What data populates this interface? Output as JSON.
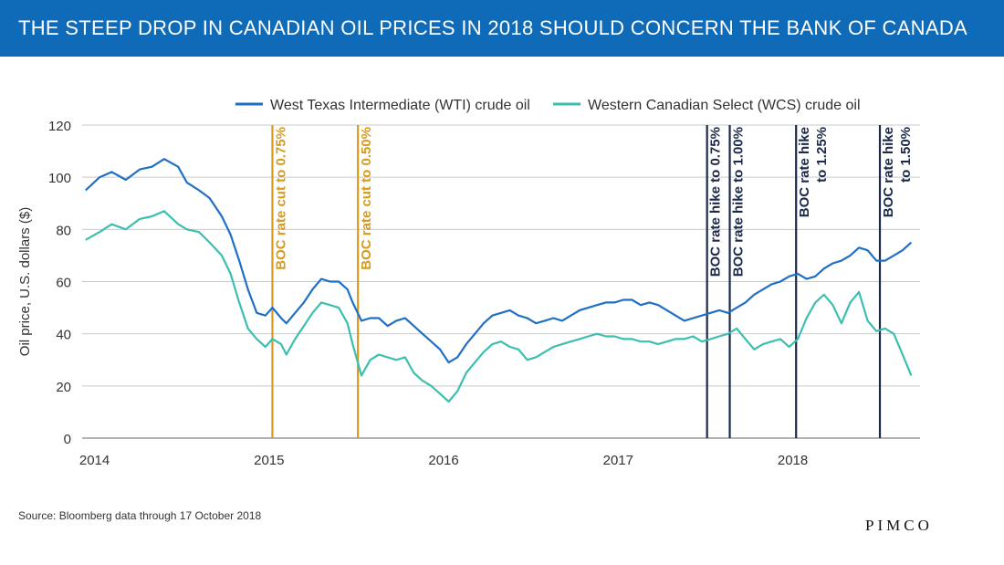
{
  "header": {
    "title": "THE STEEP DROP IN CANADIAN OIL PRICES IN 2018 SHOULD CONCERN THE BANK OF CANADA"
  },
  "footer": {
    "source": "Source: Bloomberg data through 17 October 2018",
    "brand": "PIMCO"
  },
  "colors": {
    "header_bg": "#0f6bb7",
    "wti": "#1f6fc5",
    "wcs": "#3cbfae",
    "rate_cut": "#d89a1a",
    "rate_hike": "#1b2a4a"
  },
  "chart_data": {
    "type": "line",
    "title": "",
    "xlabel": "",
    "ylabel": "Oil price, U.S. dollars ($)",
    "ylim": [
      0,
      120
    ],
    "yticks": [
      0,
      20,
      40,
      60,
      80,
      100,
      120
    ],
    "xticks": [
      {
        "label": "2014",
        "x": 2014.0
      },
      {
        "label": "2015",
        "x": 2015.0
      },
      {
        "label": "2016",
        "x": 2016.0
      },
      {
        "label": "2017",
        "x": 2017.0
      },
      {
        "label": "2018",
        "x": 2018.0
      }
    ],
    "xlim": [
      2013.95,
      2018.75
    ],
    "grid": "horizontal",
    "legend": "top-right",
    "series": [
      {
        "name": "West Texas Intermediate (WTI) crude oil",
        "x": [
          2013.97,
          2014.05,
          2014.12,
          2014.2,
          2014.28,
          2014.35,
          2014.42,
          2014.5,
          2014.55,
          2014.62,
          2014.68,
          2014.75,
          2014.8,
          2014.85,
          2014.9,
          2014.95,
          2015.0,
          2015.04,
          2015.09,
          2015.12,
          2015.17,
          2015.22,
          2015.27,
          2015.32,
          2015.37,
          2015.42,
          2015.47,
          2015.5,
          2015.55,
          2015.6,
          2015.65,
          2015.7,
          2015.75,
          2015.8,
          2015.85,
          2015.9,
          2015.95,
          2016.0,
          2016.05,
          2016.1,
          2016.15,
          2016.2,
          2016.25,
          2016.3,
          2016.35,
          2016.4,
          2016.45,
          2016.5,
          2016.55,
          2016.6,
          2016.65,
          2016.7,
          2016.75,
          2016.8,
          2016.85,
          2016.9,
          2016.95,
          2017.0,
          2017.05,
          2017.1,
          2017.15,
          2017.2,
          2017.25,
          2017.3,
          2017.35,
          2017.4,
          2017.45,
          2017.5,
          2017.55,
          2017.6,
          2017.65,
          2017.7,
          2017.75,
          2017.8,
          2017.85,
          2017.9,
          2017.95,
          2018.0,
          2018.05,
          2018.1,
          2018.15,
          2018.2,
          2018.25,
          2018.3,
          2018.35,
          2018.4,
          2018.45,
          2018.5,
          2018.55,
          2018.6,
          2018.65,
          2018.7
        ],
        "y": [
          95,
          100,
          102,
          99,
          103,
          104,
          107,
          104,
          98,
          95,
          92,
          85,
          78,
          68,
          57,
          48,
          47,
          50,
          46,
          44,
          48,
          52,
          57,
          61,
          60,
          60,
          57,
          52,
          45,
          46,
          46,
          43,
          45,
          46,
          43,
          40,
          37,
          34,
          29,
          31,
          36,
          40,
          44,
          47,
          48,
          49,
          47,
          46,
          44,
          45,
          46,
          45,
          47,
          49,
          50,
          51,
          52,
          52,
          53,
          53,
          51,
          52,
          51,
          49,
          47,
          45,
          46,
          47,
          48,
          49,
          48,
          50,
          52,
          55,
          57,
          59,
          60,
          62,
          63,
          61,
          62,
          65,
          67,
          68,
          70,
          73,
          72,
          68,
          68,
          70,
          72,
          75
        ],
        "color": "#1f6fc5"
      },
      {
        "name": "Western Canadian Select (WCS) crude oil",
        "x": [
          2013.97,
          2014.05,
          2014.12,
          2014.2,
          2014.28,
          2014.35,
          2014.42,
          2014.5,
          2014.55,
          2014.62,
          2014.68,
          2014.75,
          2014.8,
          2014.85,
          2014.9,
          2014.95,
          2015.0,
          2015.04,
          2015.09,
          2015.12,
          2015.17,
          2015.22,
          2015.27,
          2015.32,
          2015.37,
          2015.42,
          2015.47,
          2015.5,
          2015.55,
          2015.6,
          2015.65,
          2015.7,
          2015.75,
          2015.8,
          2015.85,
          2015.9,
          2015.95,
          2016.0,
          2016.05,
          2016.1,
          2016.15,
          2016.2,
          2016.25,
          2016.3,
          2016.35,
          2016.4,
          2016.45,
          2016.5,
          2016.55,
          2016.6,
          2016.65,
          2016.7,
          2016.75,
          2016.8,
          2016.85,
          2016.9,
          2016.95,
          2017.0,
          2017.05,
          2017.1,
          2017.15,
          2017.2,
          2017.25,
          2017.3,
          2017.35,
          2017.4,
          2017.45,
          2017.5,
          2017.55,
          2017.6,
          2017.65,
          2017.7,
          2017.75,
          2017.8,
          2017.85,
          2017.9,
          2017.95,
          2018.0,
          2018.05,
          2018.1,
          2018.15,
          2018.2,
          2018.25,
          2018.3,
          2018.35,
          2018.4,
          2018.45,
          2018.5,
          2018.55,
          2018.6,
          2018.65,
          2018.7
        ],
        "y": [
          76,
          79,
          82,
          80,
          84,
          85,
          87,
          82,
          80,
          79,
          75,
          70,
          63,
          52,
          42,
          38,
          35,
          38,
          36,
          32,
          38,
          43,
          48,
          52,
          51,
          50,
          44,
          36,
          24,
          30,
          32,
          31,
          30,
          31,
          25,
          22,
          20,
          17,
          14,
          18,
          25,
          29,
          33,
          36,
          37,
          35,
          34,
          30,
          31,
          33,
          35,
          36,
          37,
          38,
          39,
          40,
          39,
          39,
          38,
          38,
          37,
          37,
          36,
          37,
          38,
          38,
          39,
          37,
          38,
          39,
          40,
          42,
          38,
          34,
          36,
          37,
          38,
          35,
          38,
          46,
          52,
          55,
          51,
          44,
          52,
          56,
          45,
          41,
          42,
          40,
          32,
          24
        ],
        "color": "#3cbfae"
      }
    ],
    "events": [
      {
        "x": 2015.04,
        "label": "BOC rate cut to 0.75%",
        "kind": "cut"
      },
      {
        "x": 2015.53,
        "label": "BOC rate cut to 0.50%",
        "kind": "cut"
      },
      {
        "x": 2017.53,
        "label": "BOC rate hike to 0.75%",
        "kind": "hike"
      },
      {
        "x": 2017.66,
        "label": "BOC rate hike to 1.00%",
        "kind": "hike"
      },
      {
        "x": 2018.04,
        "label": [
          "BOC rate hike",
          "to 1.25%"
        ],
        "kind": "hike"
      },
      {
        "x": 2018.52,
        "label": [
          "BOC rate hike",
          "to 1.50%"
        ],
        "kind": "hike"
      }
    ]
  }
}
